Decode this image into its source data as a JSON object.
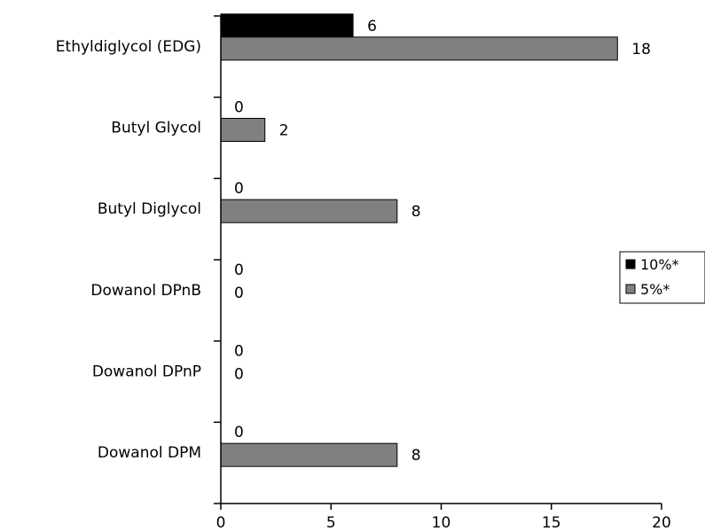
{
  "chart_data": {
    "type": "bar",
    "orientation": "horizontal",
    "categories": [
      "Ethyldiglycol (EDG)",
      "Butyl Glycol",
      "Butyl Diglycol",
      "Dowanol DPnB",
      "Dowanol DPnP",
      "Dowanol DPM"
    ],
    "series": [
      {
        "name": "10%*",
        "values": [
          6,
          0,
          0,
          0,
          0,
          0
        ],
        "color": "#000000"
      },
      {
        "name": "5%*",
        "values": [
          18,
          2,
          8,
          0,
          0,
          8
        ],
        "color": "#808080"
      }
    ],
    "xlim": [
      0,
      20
    ],
    "xticks": [
      "0",
      "5",
      "10",
      "15",
      "20"
    ],
    "grid": false,
    "legend_position": "right"
  }
}
